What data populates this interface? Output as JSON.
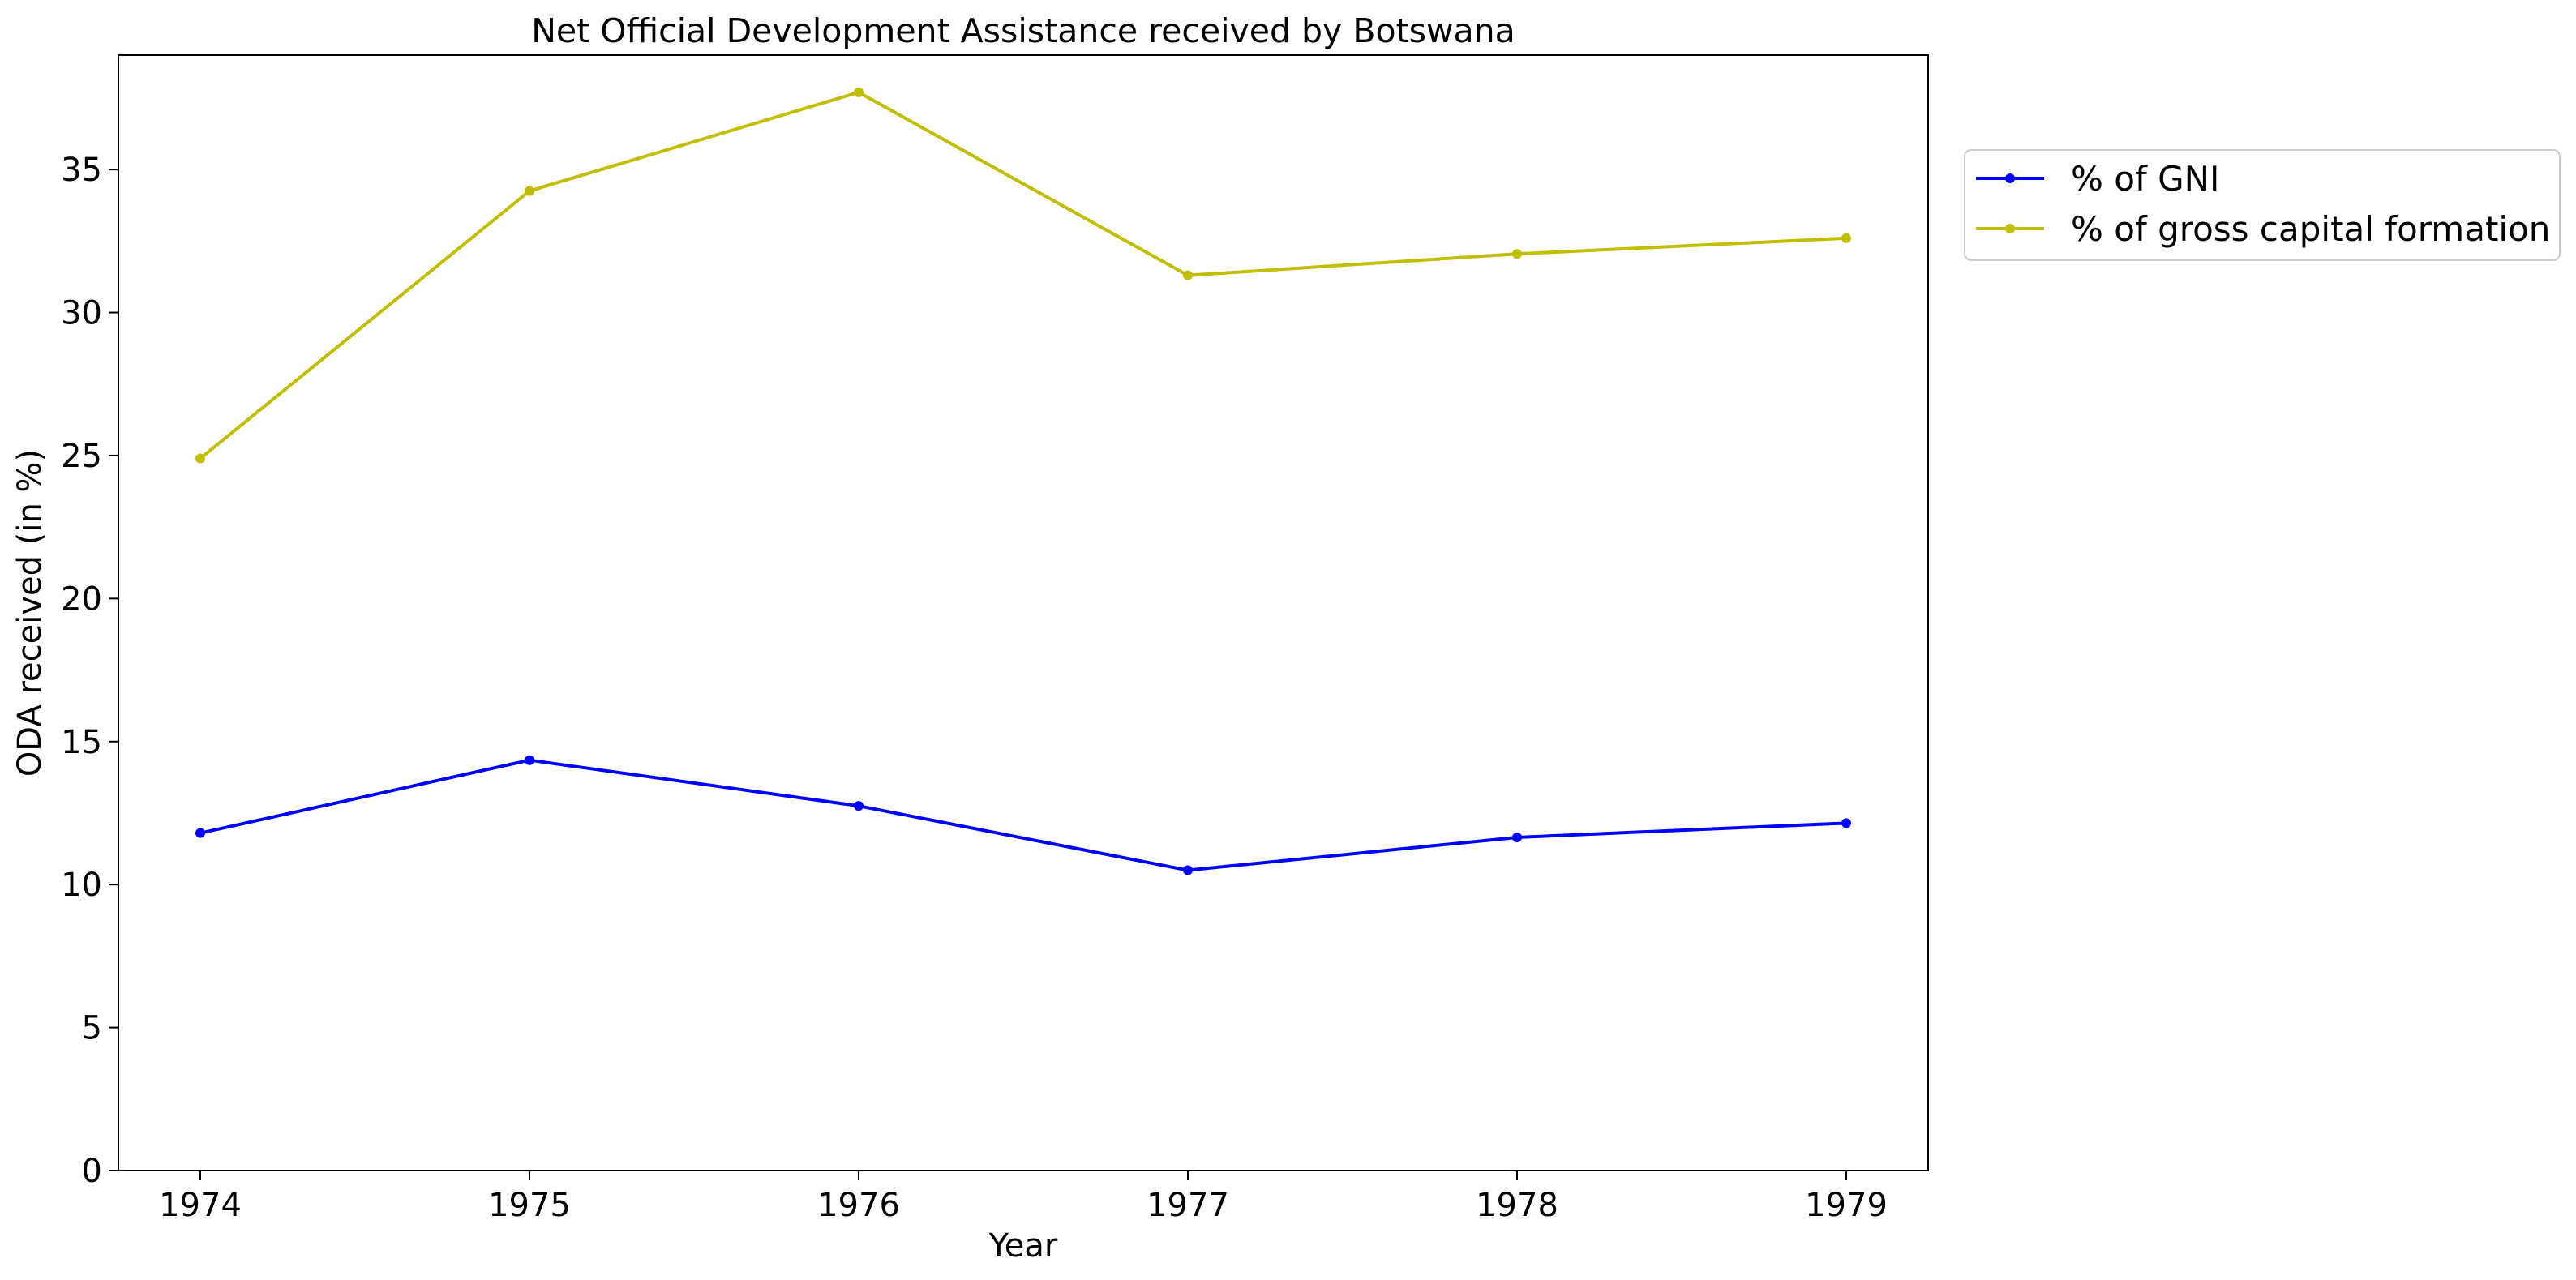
{
  "chart_data": {
    "type": "line",
    "title": "Net Official Development Assistance received by Botswana",
    "xlabel": "Year",
    "ylabel": "ODA received (in %)",
    "x": [
      "1974",
      "1975",
      "1976",
      "1977",
      "1978",
      "1979"
    ],
    "ylim": [
      0,
      39
    ],
    "yticks": [
      "0",
      "5",
      "10",
      "15",
      "20",
      "25",
      "30",
      "35"
    ],
    "grid": false,
    "legend_position": "outside-top-right",
    "series": [
      {
        "name": "% of GNI",
        "color": "#0000ff",
        "values": [
          11.8,
          14.35,
          12.75,
          10.5,
          11.65,
          12.15
        ]
      },
      {
        "name": "% of gross capital formation",
        "color": "#bfbf00",
        "values": [
          24.9,
          34.25,
          37.7,
          31.3,
          32.05,
          32.6
        ]
      }
    ]
  }
}
